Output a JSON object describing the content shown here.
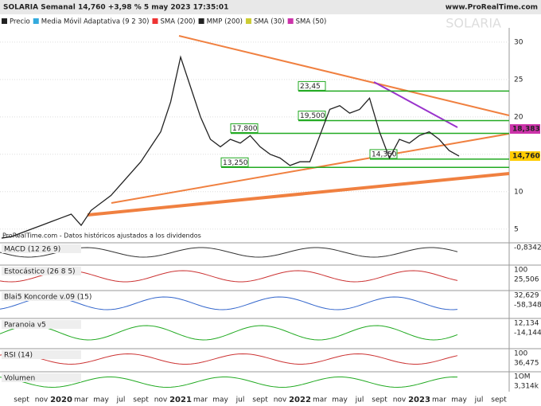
{
  "header": {
    "title": "SOLARIA Semanal 14,760 +3,98 % 5 may 2023 17:35:01",
    "site": "www.ProRealTime.com",
    "watermark": "SOLARIA"
  },
  "legend": [
    "Precio",
    "Media Móvil Adaptativa (9 2 30)",
    "SMA (200)",
    "MMP (200)",
    "SMA (30)",
    "SMA (50)"
  ],
  "note": "ProRealTime.com - Datos históricos ajustados a los dividendos",
  "chart_data": {
    "type": "line",
    "categories": [
      null,
      null,
      "sept",
      null,
      "nov",
      null,
      "2020",
      null,
      "mar",
      null,
      "may",
      null,
      "jul",
      null,
      "sept",
      null,
      "nov",
      null,
      "2021",
      null,
      "mar",
      null,
      "may",
      null,
      "jul",
      null,
      "sept",
      null,
      "nov",
      null,
      "2022",
      null,
      "mar",
      null,
      "may",
      null,
      "jul",
      null,
      "sept",
      null,
      "nov",
      null,
      "2023",
      null,
      "mar",
      null,
      "may"
    ],
    "future_labels": [
      "jul",
      "sept"
    ],
    "series": [
      {
        "name": "Precio",
        "color": "#222222",
        "values": [
          3.8,
          4.0,
          4.5,
          5.0,
          5.5,
          6.0,
          6.5,
          7.0,
          5.5,
          7.5,
          8.5,
          9.5,
          11,
          12.5,
          14,
          16,
          18,
          22,
          28,
          24,
          20,
          17,
          16,
          17,
          16.5,
          17.5,
          16,
          15,
          14.5,
          13.5,
          14,
          14,
          17.5,
          21,
          21.5,
          20.5,
          21,
          22.5,
          18,
          14.5,
          17,
          16.5,
          17.5,
          18,
          17,
          15.5,
          14.76
        ]
      }
    ],
    "ylim": [
      3.7,
      31.9
    ],
    "yticks": [
      5,
      10,
      15,
      20,
      25,
      30
    ],
    "levels": [
      {
        "value": 23.45,
        "label": "23,45"
      },
      {
        "value": 19.5,
        "label": "19,500"
      },
      {
        "value": 17.8,
        "label": "17,800"
      },
      {
        "value": 14.35,
        "label": "14,350"
      },
      {
        "value": 13.25,
        "label": "13,250"
      }
    ],
    "price_tags": [
      {
        "value": 18.383,
        "label": "18,383",
        "color": "#cc33aa"
      },
      {
        "value": 14.76,
        "label": "14,760",
        "color": "#ffcc00"
      }
    ]
  },
  "panels": [
    {
      "name": "MACD (12 26 9)",
      "labels": [
        "-0,8342"
      ]
    },
    {
      "name": "Estocástico (26 8 5)",
      "labels": [
        "100",
        "25,506"
      ]
    },
    {
      "name": "Blai5 Koncorde v.09 (15)",
      "labels": [
        "32,629",
        "-58,348"
      ]
    },
    {
      "name": "Paranoia v5",
      "labels": [
        "12,134",
        "-14,144"
      ]
    },
    {
      "name": "RSI (14)",
      "labels": [
        "100",
        "36,475"
      ]
    },
    {
      "name": "Volumen",
      "labels": [
        "1OM",
        "3,314k"
      ]
    }
  ]
}
